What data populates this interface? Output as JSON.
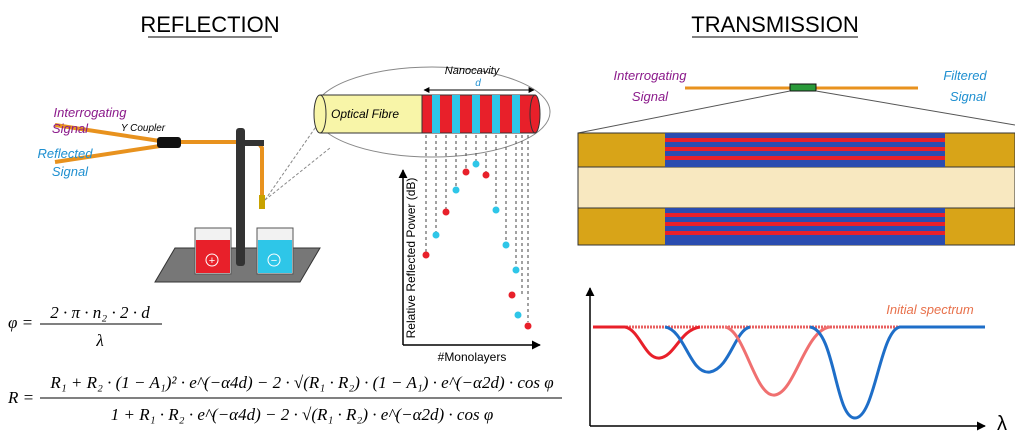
{
  "reflection": {
    "title": "REFLECTION",
    "interrogating_signal": [
      "Interrogating",
      "Signal"
    ],
    "reflected_signal": [
      "Reflected",
      "Signal"
    ],
    "coupler": "Y Coupler",
    "beaker_positive": "+",
    "beaker_negative": "−",
    "nanocavity": "Nanocavity",
    "cavity_length": "d",
    "fibre": "Optical Fibre",
    "plot_y_label": "Relative Reflected Power (dB)",
    "plot_x_label": "#Monolayers",
    "phase_equation": {
      "lhs": "φ =",
      "numerator": "2 · π · n₂ · 2 · d",
      "denominator": "λ"
    },
    "reflectance_equation": {
      "lhs": "R =",
      "numerator": "R₁ + R₂ · (1 − A₁)² · e^(−α4d) − 2 · √(R₁ · R₂) · (1 − A₁) · e^(−α2d) · cos φ",
      "denominator": "1 + R₁ · R₂ · e^(−α4d) − 2 · √(R₁ · R₂) · e^(−α2d) · cos φ"
    }
  },
  "transmission": {
    "title": "TRANSMISSION",
    "interrogating_signal": [
      "Interrogating",
      "Signal"
    ],
    "filtered_signal": [
      "Filtered",
      "Signal"
    ],
    "spectrum_label": "Initial spectrum",
    "x_axis_label": "λ"
  }
}
